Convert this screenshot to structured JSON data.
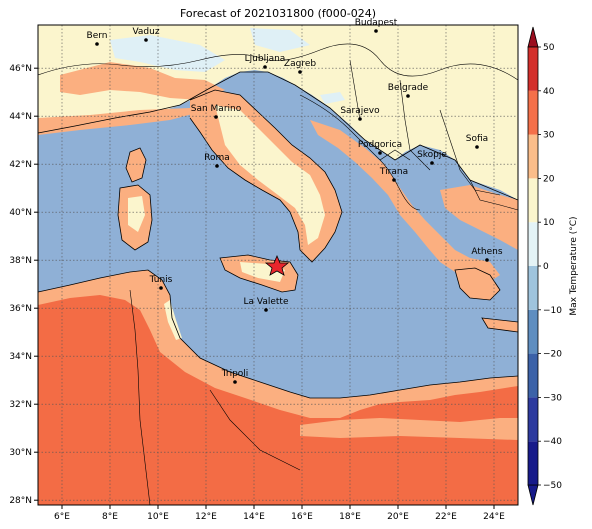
{
  "title": "Forecast of 2021031800 (f000-024)",
  "colorbar": {
    "label": "Max Temperature (°C)",
    "levels": [
      -50,
      -40,
      -30,
      -20,
      -10,
      0,
      10,
      20,
      30,
      40,
      50
    ],
    "colors": [
      "#171a8a",
      "#2d3a9e",
      "#3c62a8",
      "#5f8ec0",
      "#9fc4dd",
      "#e4f3f6",
      "#fbf5cd",
      "#fbbd8a",
      "#f4704a",
      "#d32f2b",
      "#9a0d1e"
    ]
  },
  "map": {
    "lon_ticks": [
      "6°E",
      "8°E",
      "10°E",
      "12°E",
      "14°E",
      "16°E",
      "18°E",
      "20°E",
      "22°E",
      "24°E"
    ],
    "lat_ticks": [
      "46°N",
      "44°N",
      "42°N",
      "40°N",
      "38°N",
      "36°N",
      "34°N",
      "32°N",
      "30°N",
      "28°N"
    ],
    "cities": [
      "Bern",
      "Vaduz",
      "Budapest",
      "Ljubljana",
      "Zagreb",
      "Belgrade",
      "San Marino",
      "Sarajevo",
      "Sofia",
      "Podgorica",
      "Skopje",
      "Roma",
      "Tirana",
      "Athens",
      "Tunis",
      "La Valette",
      "Tripoli"
    ],
    "marker": "star",
    "colors": {
      "sea": "#8fb0d6",
      "land_mild": "#fbf5cd",
      "land_warm": "#fbaf80",
      "land_hot": "#f36c45",
      "cold": "#dff0f6",
      "marker": "#e8262c"
    }
  }
}
